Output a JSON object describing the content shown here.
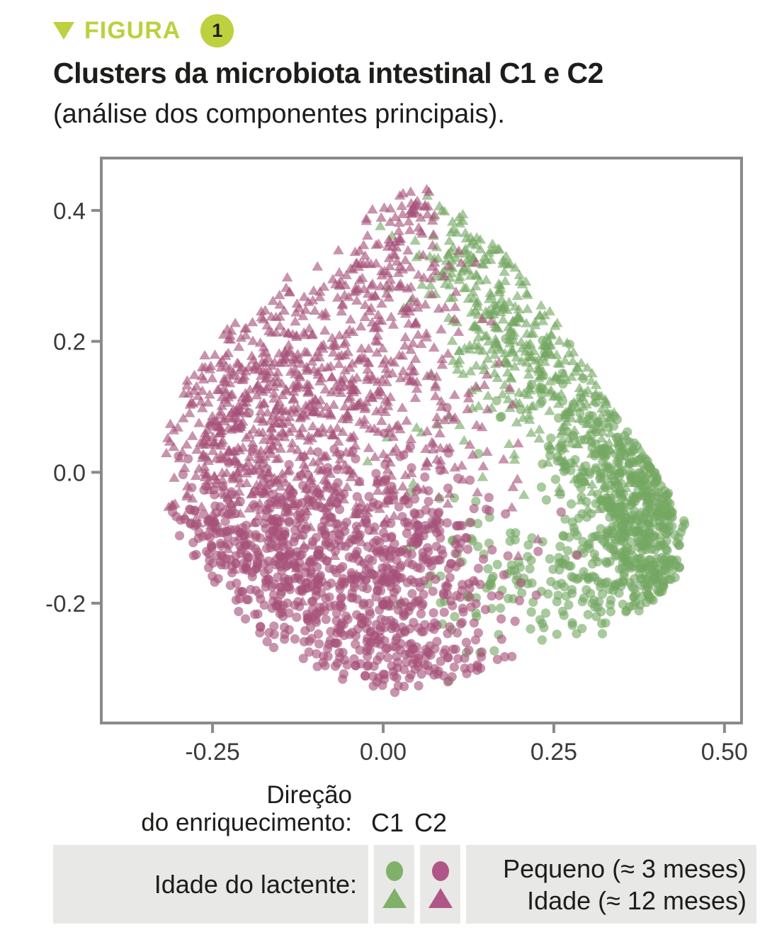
{
  "figure": {
    "label": "FIGURA",
    "number": "1",
    "title": "Clusters da microbiota intestinal C1 e C2",
    "subtitle": "(análise dos componentes principais)."
  },
  "legend": {
    "direction_line1": "Direção",
    "direction_line2": "do enriquecimento:",
    "c1": "C1",
    "c2": "C2",
    "row_label": "Idade do lactente:",
    "entries": {
      "small": "Pequeno (≈ 3 meses)",
      "age12": "Idade (≈ 12 meses)"
    }
  },
  "chart_data": {
    "type": "scatter",
    "title": "Clusters da microbiota intestinal C1 e C2 (análise dos componentes principais)",
    "xlabel": "",
    "ylabel": "",
    "grid": false,
    "legend_position": "bottom",
    "xlim": [
      -0.413,
      0.525
    ],
    "ylim": [
      -0.383,
      0.48
    ],
    "x_ticks": [
      -0.25,
      0.0,
      0.25,
      0.5
    ],
    "x_tick_labels": [
      "-0.25",
      "0.00",
      "0.25",
      "0.50"
    ],
    "y_ticks": [
      0.4,
      0.2,
      0.0,
      -0.2
    ],
    "y_tick_labels": [
      "0.4",
      "0.2",
      "0.0",
      "-0.2"
    ],
    "colors": {
      "c1_green": "#74a862",
      "c2_pink": "#a75179",
      "axis_gray": "#8a8a8a",
      "accent_lime": "#bdd03e"
    },
    "marker_opacity": 0.62,
    "hull": [
      [
        0.05,
        0.45
      ],
      [
        0.14,
        0.38
      ],
      [
        0.24,
        0.26
      ],
      [
        0.32,
        0.13
      ],
      [
        0.4,
        0.0
      ],
      [
        0.445,
        -0.08
      ],
      [
        0.43,
        -0.17
      ],
      [
        0.37,
        -0.22
      ],
      [
        0.3,
        -0.26
      ],
      [
        0.2,
        -0.28
      ],
      [
        0.1,
        -0.32
      ],
      [
        0.02,
        -0.345
      ],
      [
        -0.07,
        -0.315
      ],
      [
        -0.16,
        -0.27
      ],
      [
        -0.24,
        -0.19
      ],
      [
        -0.3,
        -0.1
      ],
      [
        -0.33,
        0.0
      ],
      [
        -0.31,
        0.1
      ],
      [
        -0.26,
        0.19
      ],
      [
        -0.19,
        0.26
      ],
      [
        -0.1,
        0.33
      ],
      [
        -0.02,
        0.4
      ]
    ],
    "series": [
      {
        "id": "c1_3m",
        "cluster": "C1",
        "age": "Pequeno (≈ 3 meses)",
        "marker": "circle",
        "color": "#74a862",
        "seed": 11,
        "components": [
          {
            "cx": 0.38,
            "cy": -0.09,
            "sx": 0.042,
            "sy": 0.055,
            "n": 240
          },
          {
            "cx": 0.345,
            "cy": 0.005,
            "sx": 0.05,
            "sy": 0.055,
            "n": 120
          },
          {
            "cx": 0.4,
            "cy": -0.16,
            "sx": 0.035,
            "sy": 0.035,
            "n": 70
          },
          {
            "cx": 0.28,
            "cy": -0.17,
            "sx": 0.06,
            "sy": 0.05,
            "n": 80
          },
          {
            "cx": 0.19,
            "cy": -0.19,
            "sx": 0.075,
            "sy": 0.05,
            "n": 60
          },
          {
            "cx": 0.3,
            "cy": 0.1,
            "sx": 0.05,
            "sy": 0.06,
            "n": 55
          },
          {
            "cx": 0.405,
            "cy": 0.03,
            "sx": 0.028,
            "sy": 0.05,
            "n": 55
          },
          {
            "cx": 0.13,
            "cy": -0.1,
            "sx": 0.05,
            "sy": 0.06,
            "n": 25
          }
        ]
      },
      {
        "id": "c1_12m",
        "cluster": "C1",
        "age": "Idade (≈ 12 meses)",
        "marker": "triangle",
        "color": "#74a862",
        "seed": 22,
        "components": [
          {
            "cx": 0.105,
            "cy": 0.345,
            "sx": 0.035,
            "sy": 0.045,
            "n": 75
          },
          {
            "cx": 0.16,
            "cy": 0.27,
            "sx": 0.04,
            "sy": 0.05,
            "n": 95
          },
          {
            "cx": 0.215,
            "cy": 0.195,
            "sx": 0.045,
            "sy": 0.05,
            "n": 95
          },
          {
            "cx": 0.27,
            "cy": 0.12,
            "sx": 0.05,
            "sy": 0.05,
            "n": 80
          },
          {
            "cx": 0.325,
            "cy": 0.045,
            "sx": 0.05,
            "sy": 0.055,
            "n": 70
          },
          {
            "cx": 0.14,
            "cy": 0.13,
            "sx": 0.06,
            "sy": 0.07,
            "n": 45
          },
          {
            "cx": 0.36,
            "cy": -0.05,
            "sx": 0.04,
            "sy": 0.05,
            "n": 35
          }
        ]
      },
      {
        "id": "c2_3m",
        "cluster": "C2",
        "age": "Pequeno (≈ 3 meses)",
        "marker": "circle",
        "color": "#a75179",
        "seed": 33,
        "components": [
          {
            "cx": -0.155,
            "cy": -0.135,
            "sx": 0.085,
            "sy": 0.065,
            "n": 300
          },
          {
            "cx": -0.02,
            "cy": -0.205,
            "sx": 0.095,
            "sy": 0.06,
            "n": 280
          },
          {
            "cx": 0.035,
            "cy": -0.285,
            "sx": 0.07,
            "sy": 0.035,
            "n": 110
          },
          {
            "cx": -0.06,
            "cy": -0.06,
            "sx": 0.11,
            "sy": 0.055,
            "n": 130
          },
          {
            "cx": 0.065,
            "cy": -0.13,
            "sx": 0.05,
            "sy": 0.06,
            "n": 80
          },
          {
            "cx": -0.24,
            "cy": -0.09,
            "sx": 0.05,
            "sy": 0.05,
            "n": 60
          }
        ]
      },
      {
        "id": "c2_12m",
        "cluster": "C2",
        "age": "Idade (≈ 12 meses)",
        "marker": "triangle",
        "color": "#a75179",
        "seed": 44,
        "components": [
          {
            "cx": -0.18,
            "cy": 0.09,
            "sx": 0.08,
            "sy": 0.09,
            "n": 430
          },
          {
            "cx": -0.06,
            "cy": 0.17,
            "sx": 0.085,
            "sy": 0.08,
            "n": 230
          },
          {
            "cx": -0.005,
            "cy": 0.315,
            "sx": 0.05,
            "sy": 0.05,
            "n": 90
          },
          {
            "cx": 0.04,
            "cy": 0.4,
            "sx": 0.025,
            "sy": 0.028,
            "n": 35
          },
          {
            "cx": -0.05,
            "cy": -0.01,
            "sx": 0.12,
            "sy": 0.07,
            "n": 150
          },
          {
            "cx": 0.07,
            "cy": 0.07,
            "sx": 0.055,
            "sy": 0.1,
            "n": 60
          },
          {
            "cx": -0.27,
            "cy": 0.03,
            "sx": 0.04,
            "sy": 0.06,
            "n": 60
          }
        ]
      }
    ]
  }
}
